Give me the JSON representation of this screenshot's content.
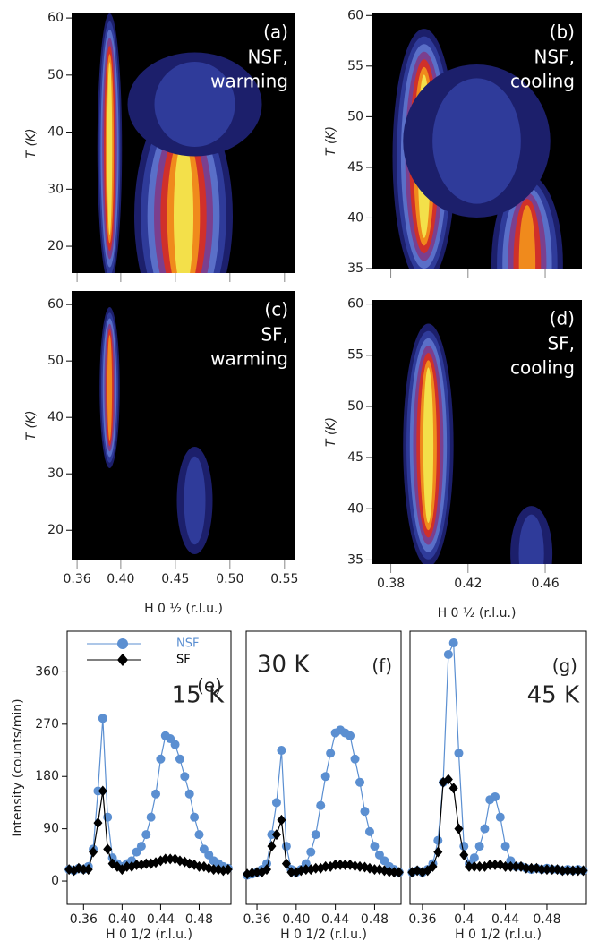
{
  "chart_data": [
    {
      "type": "contour",
      "panel": "(a)",
      "label_lines": [
        "NSF,",
        "warming"
      ],
      "ylabel": "T (K)",
      "xlim": [
        0.355,
        0.56
      ],
      "xticks": [
        0.36,
        0.4,
        0.45,
        0.5,
        0.55
      ],
      "ylim": [
        15.3,
        60.8
      ],
      "yticks": [
        20,
        30,
        40,
        50,
        60
      ]
    },
    {
      "type": "contour",
      "panel": "(b)",
      "label_lines": [
        "NSF,",
        "cooling"
      ],
      "ylabel": "T (K)",
      "xlim": [
        0.37,
        0.479
      ],
      "xticks": [
        0.38,
        0.42,
        0.46
      ],
      "ylim": [
        35,
        60.2
      ],
      "yticks": [
        35,
        40,
        45,
        50,
        55,
        60
      ]
    },
    {
      "type": "contour",
      "panel": "(c)",
      "label_lines": [
        "SF,",
        "warming"
      ],
      "ylabel": "T (K)",
      "xlabel": "H 0 ½ (r.l.u.)",
      "xlim": [
        0.355,
        0.56
      ],
      "xticks": [
        0.36,
        {
          "value": 0.4,
          "label": "0.40"
        },
        0.45,
        {
          "value": 0.5,
          "label": "0.50"
        },
        0.55
      ],
      "ylim": [
        14.8,
        62.4
      ],
      "yticks": [
        20,
        30,
        40,
        50,
        60
      ]
    },
    {
      "type": "contour",
      "panel": "(d)",
      "label_lines": [
        "SF,",
        "cooling"
      ],
      "ylabel": "T (K)",
      "xlabel": "H 0 ½ (r.l.u.)",
      "xlim": [
        0.37,
        0.479
      ],
      "xticks": [
        0.38,
        0.42,
        0.46
      ],
      "ylim": [
        34.6,
        60.4
      ],
      "yticks": [
        35,
        40,
        45,
        50,
        55,
        60
      ]
    },
    {
      "type": "line",
      "panel": "(e)",
      "annotation": "15 K",
      "ylabel": "Intensity (counts/min)",
      "xlabel": "H  0  1/2 (r.l.u.)",
      "legend": "upper left",
      "xlim": [
        0.343,
        0.513
      ],
      "xticks": [
        0.36,
        {
          "value": 0.4,
          "label": "0.40"
        },
        0.44,
        0.48
      ],
      "ylim": [
        -40,
        430
      ],
      "yticks": [
        0,
        90,
        180,
        270,
        360
      ],
      "x": [
        0.345,
        0.35,
        0.355,
        0.36,
        0.365,
        0.37,
        0.375,
        0.38,
        0.385,
        0.39,
        0.395,
        0.4,
        0.405,
        0.41,
        0.415,
        0.42,
        0.425,
        0.43,
        0.435,
        0.44,
        0.445,
        0.45,
        0.455,
        0.46,
        0.465,
        0.47,
        0.475,
        0.48,
        0.485,
        0.49,
        0.495,
        0.5,
        0.505,
        0.51
      ],
      "series": [
        {
          "name": "NSF",
          "color": "#5b8fd1",
          "marker": "circle",
          "values": [
            20,
            18,
            22,
            20,
            25,
            55,
            155,
            280,
            110,
            40,
            30,
            25,
            30,
            35,
            50,
            60,
            80,
            110,
            150,
            210,
            250,
            245,
            235,
            210,
            180,
            150,
            110,
            80,
            55,
            45,
            35,
            30,
            25,
            22
          ]
        },
        {
          "name": "SF",
          "color": "#000000",
          "marker": "diamond",
          "values": [
            20,
            18,
            22,
            20,
            20,
            50,
            100,
            155,
            55,
            30,
            25,
            20,
            25,
            25,
            28,
            28,
            30,
            30,
            32,
            35,
            38,
            38,
            38,
            35,
            33,
            30,
            28,
            25,
            25,
            22,
            20,
            20,
            18,
            20
          ]
        }
      ]
    },
    {
      "type": "line",
      "panel": "(f)",
      "annotation": "30 K",
      "xlabel": "H  0  1/2 (r.l.u.)",
      "xlim": [
        0.349,
        0.507
      ],
      "xticks": [
        0.36,
        {
          "value": 0.4,
          "label": "0.40"
        },
        0.44,
        0.48
      ],
      "ylim": [
        -40,
        430
      ],
      "x": [
        0.35,
        0.355,
        0.36,
        0.365,
        0.37,
        0.375,
        0.38,
        0.385,
        0.39,
        0.395,
        0.4,
        0.405,
        0.41,
        0.415,
        0.42,
        0.425,
        0.43,
        0.435,
        0.44,
        0.445,
        0.45,
        0.455,
        0.46,
        0.465,
        0.47,
        0.475,
        0.48,
        0.485,
        0.49,
        0.495,
        0.5,
        0.505
      ],
      "series": [
        {
          "color": "#5b8fd1",
          "marker": "circle",
          "values": [
            10,
            12,
            15,
            20,
            30,
            80,
            135,
            225,
            60,
            20,
            15,
            20,
            30,
            50,
            80,
            130,
            180,
            220,
            255,
            260,
            255,
            250,
            210,
            170,
            120,
            85,
            60,
            45,
            35,
            25,
            20,
            15
          ]
        },
        {
          "color": "#000000",
          "marker": "diamond",
          "values": [
            12,
            14,
            15,
            15,
            20,
            60,
            80,
            105,
            30,
            15,
            15,
            18,
            20,
            20,
            22,
            22,
            25,
            25,
            28,
            28,
            28,
            28,
            26,
            25,
            24,
            22,
            20,
            20,
            18,
            16,
            15,
            15
          ]
        }
      ]
    },
    {
      "type": "line",
      "panel": "(g)",
      "annotation": "45 K",
      "xlabel": "H  0  1/2 (r.l.u.)",
      "xlim": [
        0.348,
        0.518
      ],
      "xticks": [
        0.36,
        0.4,
        0.44,
        0.48
      ],
      "ylim": [
        -40,
        430
      ],
      "x": [
        0.35,
        0.355,
        0.36,
        0.365,
        0.37,
        0.375,
        0.38,
        0.385,
        0.39,
        0.395,
        0.4,
        0.405,
        0.41,
        0.415,
        0.42,
        0.425,
        0.43,
        0.435,
        0.44,
        0.445,
        0.45,
        0.455,
        0.46,
        0.465,
        0.47,
        0.475,
        0.48,
        0.485,
        0.49,
        0.495,
        0.5,
        0.505,
        0.51,
        0.515
      ],
      "series": [
        {
          "color": "#5b8fd1",
          "marker": "circle",
          "values": [
            15,
            18,
            15,
            20,
            30,
            70,
            170,
            390,
            410,
            220,
            60,
            30,
            40,
            60,
            90,
            140,
            145,
            110,
            60,
            35,
            25,
            25,
            22,
            20,
            22,
            20,
            22,
            20,
            20,
            18,
            20,
            18,
            20,
            18
          ]
        },
        {
          "color": "#000000",
          "marker": "diamond",
          "values": [
            15,
            18,
            15,
            18,
            25,
            50,
            170,
            175,
            160,
            90,
            45,
            25,
            25,
            25,
            25,
            28,
            28,
            28,
            25,
            25,
            25,
            25,
            22,
            22,
            22,
            20,
            20,
            20,
            20,
            18,
            18,
            18,
            18,
            18
          ]
        }
      ]
    }
  ]
}
